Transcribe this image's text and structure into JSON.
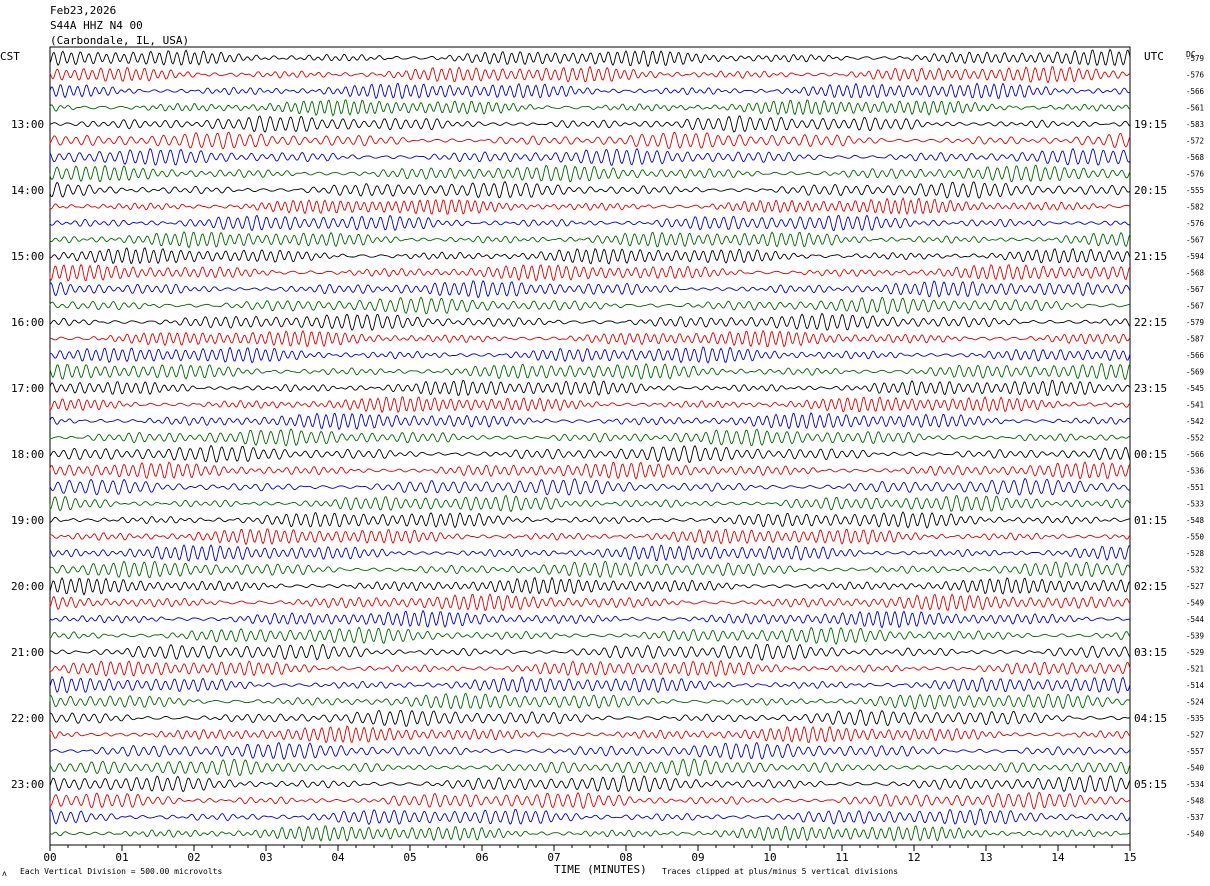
{
  "header": {
    "date": "Feb23,2026",
    "station": "S44A HHZ N4 00",
    "location": "(Carbondale, IL, USA)"
  },
  "left_zone": "CST",
  "right_zone": "UTC",
  "dc_label": "DC",
  "footer": {
    "scale_note": "Each Vertical Division =  500.00 microvolts",
    "xlabel": "TIME (MINUTES)",
    "clip_note": "Traces clipped at plus/minus 5 vertical divisions"
  },
  "chart_data": {
    "type": "line",
    "title": "S44A HHZ N4 00",
    "xlabel": "TIME (MINUTES)",
    "xlim": [
      0,
      15
    ],
    "x_ticks": [
      "00",
      "01",
      "02",
      "03",
      "04",
      "05",
      "06",
      "07",
      "08",
      "09",
      "10",
      "11",
      "12",
      "13",
      "14",
      "15"
    ],
    "trace_colors": [
      "#000000",
      "#dd0000",
      "#0000cc",
      "#006600"
    ],
    "traces_per_hour": 4,
    "left_hour_labels": [
      "13:00",
      "14:00",
      "15:00",
      "16:00",
      "17:00",
      "18:00",
      "19:00",
      "20:00",
      "21:00",
      "22:00",
      "23:00"
    ],
    "right_hour_labels": [
      "19:15",
      "20:15",
      "21:15",
      "22:15",
      "23:15",
      "00:15",
      "01:15",
      "02:15",
      "03:15",
      "04:15",
      "05:15"
    ],
    "dc_offsets": [
      "-579",
      "-576",
      "-566",
      "-561",
      "-583",
      "-572",
      "-568",
      "-576",
      "-555",
      "-582",
      "-576",
      "-567",
      "-594",
      "-568",
      "-567",
      "-567",
      "-579",
      "-587",
      "-566",
      "-569",
      "-545",
      "-541",
      "-542",
      "-552",
      "-566",
      "-536",
      "-551",
      "-533",
      "-548",
      "-550",
      "-528",
      "-532",
      "-527",
      "-549",
      "-544",
      "-539",
      "-529",
      "-521",
      "-514",
      "-524",
      "-535",
      "-527",
      "-557",
      "-540",
      "-534",
      "-548",
      "-537",
      "-540"
    ]
  }
}
